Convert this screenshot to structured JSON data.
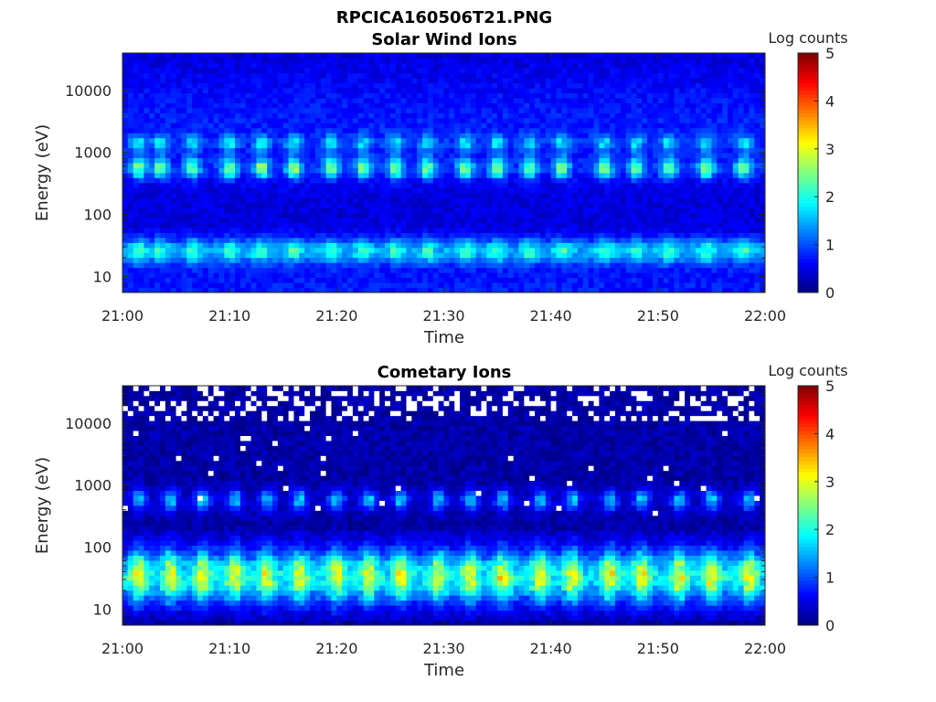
{
  "figure": {
    "title": "RPCICA160506T21.PNG"
  },
  "chart_data": [
    {
      "type": "heatmap",
      "title": "Solar Wind Ions",
      "xlabel": "Time",
      "ylabel": "Energy (eV)",
      "x_tick_labels": [
        "21:00",
        "21:10",
        "21:20",
        "21:30",
        "21:40",
        "21:50",
        "22:00"
      ],
      "y_tick_labels": [
        "10",
        "100",
        "1000",
        "10000"
      ],
      "y_tick_values": [
        10,
        100,
        1000,
        10000
      ],
      "y_scale": "log",
      "ylim": [
        5.5,
        40000
      ],
      "colorbar": {
        "label": "Log counts",
        "range": [
          0,
          5
        ],
        "tick_labels": [
          "0",
          "1",
          "2",
          "3",
          "4",
          "5"
        ],
        "colormap": "jet"
      },
      "pulse_times_min": [
        1.5,
        3.5,
        6.5,
        10,
        13,
        16,
        19.5,
        22.5,
        25.5,
        28.5,
        32,
        35,
        38,
        41,
        45,
        48,
        51,
        54.5,
        58
      ],
      "bands": [
        {
          "name": "low-energy",
          "energy_range_eV": [
            18,
            38
          ],
          "peak_log_counts": 2.2
        },
        {
          "name": "mid-energy",
          "energy_range_eV": [
            420,
            750
          ],
          "peak_log_counts": 2.6
        },
        {
          "name": "high-energy",
          "energy_range_eV": [
            1100,
            1800
          ],
          "peak_log_counts": 1.7
        }
      ],
      "background_log_counts": 0.6
    },
    {
      "type": "heatmap",
      "title": "Cometary Ions",
      "xlabel": "Time",
      "ylabel": "Energy (eV)",
      "x_tick_labels": [
        "21:00",
        "21:10",
        "21:20",
        "21:30",
        "21:40",
        "21:50",
        "22:00"
      ],
      "y_tick_labels": [
        "10",
        "100",
        "1000",
        "10000"
      ],
      "y_tick_values": [
        10,
        100,
        1000,
        10000
      ],
      "y_scale": "log",
      "ylim": [
        5.5,
        40000
      ],
      "colorbar": {
        "label": "Log counts",
        "range": [
          0,
          5
        ],
        "tick_labels": [
          "0",
          "1",
          "2",
          "3",
          "4",
          "5"
        ],
        "colormap": "jet"
      },
      "pulse_times_min": [
        1.5,
        4.5,
        7.5,
        10.5,
        13.5,
        16.5,
        20,
        23,
        26,
        29.5,
        32.5,
        35.5,
        39,
        42,
        45.5,
        48.5,
        52,
        55,
        58.5
      ],
      "bands": [
        {
          "name": "low-energy",
          "energy_range_eV": [
            13,
            90
          ],
          "peak_log_counts": 3.1
        },
        {
          "name": "mid-energy",
          "energy_range_eV": [
            420,
            800
          ],
          "peak_log_counts": 1.6
        }
      ],
      "background_log_counts": 0.2,
      "no_data_above_eV": 10000
    }
  ]
}
